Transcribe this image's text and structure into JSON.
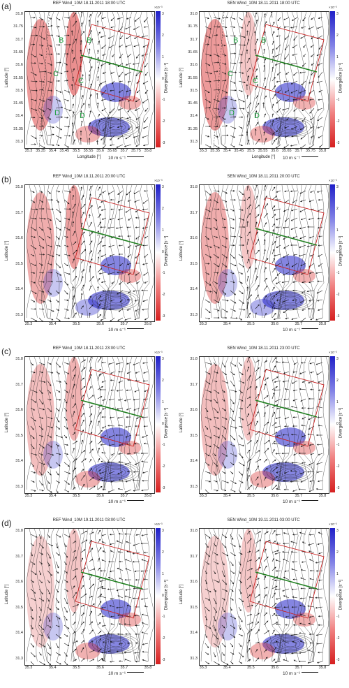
{
  "rows": [
    {
      "label": "(a)",
      "ref_title": "REF Wind_10M 18.11.2011 18:00 UTC",
      "sen_title": "SEN Wind_10M 18.11.2011 18:00 UTC"
    },
    {
      "label": "(b)",
      "ref_title": "REF Wind_10M 18.11.2011 20:00 UTC",
      "sen_title": "SEN Wind_10M 18.11.2011 20:00 UTC"
    },
    {
      "label": "(c)",
      "ref_title": "REF Wind_10M 18.11.2011 23:00 UTC",
      "sen_title": "SEN Wind_10M 18.11.2011 23:00 UTC"
    },
    {
      "label": "(d)",
      "ref_title": "REF Wind_10M 19.11.2011 03:00 UTC",
      "sen_title": "SEN Wind_10M 19.11.2011 03:00 UTC"
    }
  ],
  "axes": {
    "ylabel": "Latitude [°]",
    "xlabel": "Longitude [°]",
    "yticks_a": [
      "31.8",
      "31.75",
      "31.7",
      "31.65",
      "31.6",
      "31.55",
      "31.5",
      "31.45",
      "31.4",
      "31.35",
      "31.3"
    ],
    "xticks_a": [
      "35.3",
      "35.35",
      "35.4",
      "35.45",
      "35.5",
      "35.55",
      "35.6",
      "35.65",
      "35.7",
      "35.75",
      "35.8"
    ],
    "yticks": [
      "31.8",
      "31.7",
      "31.6",
      "31.5",
      "31.4",
      "31.3"
    ],
    "xticks": [
      "35.3",
      "35.4",
      "35.5",
      "35.6",
      "35.7",
      "35.8"
    ]
  },
  "colorbar": {
    "label": "Divergence [s⁻¹]",
    "exponent": "×10⁻³",
    "ticks": [
      "3",
      "2",
      "1",
      "0",
      "-1",
      "-2",
      "-3"
    ],
    "colors": {
      "positive": "#2020c8",
      "zero": "#ffffff",
      "negative": "#d62020"
    }
  },
  "scale_arrow": "10 m s⁻¹",
  "region_labels": [
    "B",
    "B",
    "C",
    "C",
    "D",
    "D"
  ],
  "overlay_colors": {
    "box": "#c82020",
    "transect": "#208020",
    "labels": "#20a040"
  }
}
